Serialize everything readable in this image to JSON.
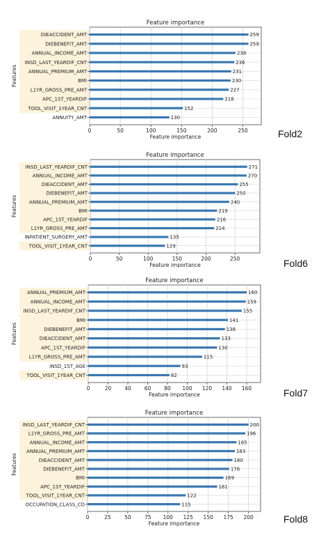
{
  "highlight_color": "#fdf3dc",
  "bar_color": "#3a78b0",
  "grid_color": "#d3d3d3",
  "charts": [
    {
      "fold_label": "Fold2",
      "chart_data": {
        "type": "bar",
        "orientation": "horizontal",
        "title": "Feature importance",
        "xlabel": "Feature importance",
        "ylabel": "Features",
        "xlim": [
          0,
          280
        ],
        "xticks": [
          0,
          50,
          100,
          150,
          200,
          250
        ],
        "grid": true,
        "categories": [
          "DIEACCIDENT_AMT",
          "DIEBENEFIT_AMT",
          "ANNUAL_INCOME_AMT",
          "INSD_LAST_YEARDIF_CNT",
          "ANNUAL_PREMIUM_AMT",
          "BMI",
          "L1YR_GROSS_PRE_AMT",
          "APC_1ST_YEARDIF",
          "TOOL_VISIT_1YEAR_CNT",
          "ANNUITY_AMT"
        ],
        "values": [
          259,
          259,
          238,
          236,
          231,
          230,
          227,
          218,
          152,
          130
        ],
        "highlighted": [
          true,
          true,
          true,
          true,
          true,
          true,
          true,
          true,
          true,
          false
        ]
      }
    },
    {
      "fold_label": "Fold6",
      "chart_data": {
        "type": "bar",
        "orientation": "horizontal",
        "title": "Feature importance",
        "xlabel": "Feature importance",
        "ylabel": "Features",
        "xlim": [
          0,
          293
        ],
        "xticks": [
          0,
          50,
          100,
          150,
          200,
          250
        ],
        "grid": true,
        "categories": [
          "INSD_LAST_YEARDIF_CNT",
          "ANNUAL_INCOME_AMT",
          "DIEACCIDENT_AMT",
          "DIEBENEFIT_AMT",
          "ANNUAL_PREMIUM_AMT",
          "BMI",
          "APC_1ST_YEARDIF",
          "L1YR_GROSS_PRE_AMT",
          "INPATIENT_SURGERY_AMT",
          "TOOL_VISIT_1YEAR_CNT"
        ],
        "values": [
          271,
          270,
          255,
          250,
          240,
          219,
          216,
          214,
          135,
          129
        ],
        "highlighted": [
          true,
          true,
          true,
          true,
          true,
          true,
          true,
          true,
          false,
          true
        ]
      }
    },
    {
      "fold_label": "Fold7",
      "chart_data": {
        "type": "bar",
        "orientation": "horizontal",
        "title": "Feature importance",
        "xlabel": "Feature importance",
        "ylabel": "Features",
        "xlim": [
          0,
          174
        ],
        "xticks": [
          0,
          20,
          40,
          60,
          80,
          100,
          120,
          140,
          160
        ],
        "grid": true,
        "categories": [
          "ANNUAL_PREMIUM_AMT",
          "ANNUAL_INCOME_AMT",
          "INSD_LAST_YEARDIF_CNT",
          "BMI",
          "DIEBENEFIT_AMT",
          "DIEACCIDENT_AMT",
          "APC_1ST_YEARDIF",
          "L1YR_GROSS_PRE_AMT",
          "INSD_1ST_AGE",
          "TOOL_VISIT_1YEAR_CNT"
        ],
        "values": [
          160,
          159,
          155,
          141,
          138,
          133,
          130,
          115,
          93,
          82
        ],
        "highlighted": [
          true,
          true,
          true,
          true,
          true,
          true,
          true,
          true,
          false,
          true
        ]
      }
    },
    {
      "fold_label": "Fold8",
      "chart_data": {
        "type": "bar",
        "orientation": "horizontal",
        "title": "Feature importance",
        "xlabel": "Feature importance",
        "ylabel": "Features",
        "xlim": [
          0,
          215
        ],
        "xticks": [
          0,
          25,
          50,
          75,
          100,
          125,
          150,
          175,
          200
        ],
        "grid": true,
        "categories": [
          "INSD_LAST_YEARDIF_CNT",
          "L1YR_GROSS_PRE_AMT",
          "ANNUAL_INCOME_AMT",
          "ANNUAL_PREMIUM_AMT",
          "DIEACCIDENT_AMT",
          "DIEBENEFIT_AMT",
          "BMI",
          "APC_1ST_YEARDIF",
          "TOOL_VISIT_1YEAR_CNT",
          "OCCUPATION_CLASS_CD"
        ],
        "values": [
          200,
          196,
          185,
          183,
          180,
          176,
          169,
          161,
          122,
          115
        ],
        "highlighted": [
          true,
          true,
          true,
          true,
          true,
          true,
          true,
          true,
          true,
          false
        ]
      }
    }
  ]
}
